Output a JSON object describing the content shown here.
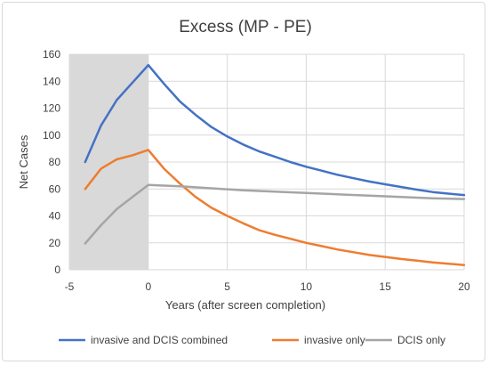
{
  "chart_data": {
    "type": "line",
    "title": "Excess (MP - PE)",
    "xlabel": "Years (after screen completion)",
    "ylabel": "Net Cases",
    "xlim": [
      -5,
      20
    ],
    "ylim": [
      0,
      160
    ],
    "x_ticks": [
      -5,
      0,
      5,
      10,
      15,
      20
    ],
    "y_ticks": [
      0,
      20,
      40,
      60,
      80,
      100,
      120,
      140,
      160
    ],
    "grid": true,
    "shaded_region": {
      "x_from": -5,
      "x_to": 0,
      "color": "#d9d9d9"
    },
    "legend_position": "bottom",
    "series": [
      {
        "name": "invasive and DCIS combined",
        "color": "#4472c4",
        "points": [
          [
            -4,
            80
          ],
          [
            -3,
            107
          ],
          [
            -2,
            126
          ],
          [
            -1,
            139
          ],
          [
            0,
            152
          ],
          [
            1,
            138
          ],
          [
            2,
            125
          ],
          [
            3,
            115
          ],
          [
            4,
            106
          ],
          [
            5,
            99
          ],
          [
            6,
            93
          ],
          [
            7,
            88
          ],
          [
            8,
            84
          ],
          [
            9,
            80
          ],
          [
            10,
            76.5
          ],
          [
            11,
            73.5
          ],
          [
            12,
            70.5
          ],
          [
            13,
            68
          ],
          [
            14,
            65.5
          ],
          [
            15,
            63.5
          ],
          [
            16,
            61.5
          ],
          [
            17,
            59.5
          ],
          [
            18,
            57.7
          ],
          [
            19,
            56.5
          ],
          [
            20,
            55.5
          ]
        ]
      },
      {
        "name": "invasive only",
        "color": "#ed7d31",
        "points": [
          [
            -4,
            60
          ],
          [
            -3,
            75
          ],
          [
            -2,
            82
          ],
          [
            -1,
            85
          ],
          [
            0,
            89
          ],
          [
            1,
            75
          ],
          [
            2,
            64
          ],
          [
            3,
            54
          ],
          [
            4,
            46
          ],
          [
            5,
            40
          ],
          [
            6,
            34.5
          ],
          [
            7,
            29.5
          ],
          [
            8,
            26
          ],
          [
            9,
            23
          ],
          [
            10,
            20
          ],
          [
            11,
            17.5
          ],
          [
            12,
            15
          ],
          [
            13,
            13
          ],
          [
            14,
            11
          ],
          [
            15,
            9.5
          ],
          [
            16,
            8
          ],
          [
            17,
            6.8
          ],
          [
            18,
            5.5
          ],
          [
            19,
            4.5
          ],
          [
            20,
            3.5
          ]
        ]
      },
      {
        "name": "DCIS only",
        "color": "#a5a5a5",
        "points": [
          [
            -4,
            19.5
          ],
          [
            -3,
            33
          ],
          [
            -2,
            45
          ],
          [
            -1,
            54
          ],
          [
            0,
            63
          ],
          [
            2,
            62
          ],
          [
            4,
            60.5
          ],
          [
            6,
            59
          ],
          [
            8,
            58
          ],
          [
            10,
            57
          ],
          [
            12,
            56
          ],
          [
            14,
            55
          ],
          [
            16,
            54
          ],
          [
            18,
            53
          ],
          [
            20,
            52.5
          ]
        ]
      }
    ]
  }
}
